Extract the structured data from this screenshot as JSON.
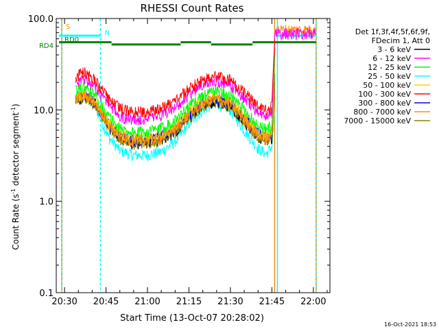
{
  "chart_data": {
    "type": "line",
    "title": "RHESSI Count Rates",
    "xlabel": "Start Time (13-Oct-07 20:28:02)",
    "ylabel_main": "Count Rate (s",
    "ylabel_sup1": "-1",
    "ylabel_mid": " detector segment",
    "ylabel_sup2": "-1",
    "ylabel_end": ")",
    "xlim": [
      "20:27",
      "22:06"
    ],
    "ylim": [
      0.1,
      100.0
    ],
    "yscale": "log",
    "x_ticks": [
      {
        "t": "20:30",
        "label": "20:30"
      },
      {
        "t": "20:45",
        "label": "20:45"
      },
      {
        "t": "21:00",
        "label": "21:00"
      },
      {
        "t": "21:15",
        "label": "21:15"
      },
      {
        "t": "21:30",
        "label": "21:30"
      },
      {
        "t": "21:45",
        "label": "21:45"
      },
      {
        "t": "22:00",
        "label": "22:00"
      }
    ],
    "y_ticks": [
      {
        "v": 0.1,
        "label": "0.1"
      },
      {
        "v": 1.0,
        "label": "1.0"
      },
      {
        "v": 10.0,
        "label": "10.0"
      },
      {
        "v": 100.0,
        "label": "100.0"
      }
    ],
    "legend": {
      "position": "right",
      "header": [
        "Det 1f,3f,4f,5f,6f,9f,",
        "FDecim 1, Att 0"
      ],
      "entries": [
        {
          "label": "3 - 6 keV",
          "color": "#000000"
        },
        {
          "label": "6 - 12 keV",
          "color": "#ff00ff"
        },
        {
          "label": "12 - 25 keV",
          "color": "#00ff00"
        },
        {
          "label": "25 - 50 keV",
          "color": "#00ffff"
        },
        {
          "label": "50 - 100 keV",
          "color": "#ffd700"
        },
        {
          "label": "100 - 300 keV",
          "color": "#ff0000"
        },
        {
          "label": "300 - 800 keV",
          "color": "#0000ff"
        },
        {
          "label": "800 - 7000 keV",
          "color": "#ff8c00"
        },
        {
          "label": "7000 - 15000 keV",
          "color": "#8b8000"
        }
      ]
    },
    "series": [
      {
        "color": "#00ffff",
        "points": [
          [
            "20:34",
            14
          ],
          [
            "20:37",
            15
          ],
          [
            "20:41",
            11
          ],
          [
            "20:46",
            5
          ],
          [
            "20:50",
            3.6
          ],
          [
            "20:55",
            3.2
          ],
          [
            "21:00",
            3.2
          ],
          [
            "21:05",
            3.5
          ],
          [
            "21:10",
            4.5
          ],
          [
            "21:15",
            7
          ],
          [
            "21:20",
            10
          ],
          [
            "21:25",
            12
          ],
          [
            "21:30",
            10
          ],
          [
            "21:35",
            6
          ],
          [
            "21:40",
            3.8
          ],
          [
            "21:43",
            3.3
          ],
          [
            "21:45",
            4
          ],
          [
            "21:46",
            9
          ]
        ]
      },
      {
        "color": "#000000",
        "points": [
          [
            "20:34",
            12.5
          ],
          [
            "20:37",
            14
          ],
          [
            "20:41",
            11.5
          ],
          [
            "20:46",
            6.5
          ],
          [
            "20:50",
            4.8
          ],
          [
            "20:55",
            4.3
          ],
          [
            "21:00",
            4.4
          ],
          [
            "21:05",
            4.7
          ],
          [
            "21:10",
            5.8
          ],
          [
            "21:15",
            8.2
          ],
          [
            "21:20",
            11
          ],
          [
            "21:25",
            12.5
          ],
          [
            "21:30",
            11
          ],
          [
            "21:35",
            7.5
          ],
          [
            "21:40",
            5
          ],
          [
            "21:43",
            4.6
          ],
          [
            "21:45",
            5
          ],
          [
            "21:46",
            20
          ]
        ]
      },
      {
        "color": "#8b8000",
        "points": [
          [
            "20:34",
            12.5
          ],
          [
            "20:37",
            14
          ],
          [
            "20:41",
            11.5
          ],
          [
            "20:46",
            6.5
          ],
          [
            "20:50",
            4.8
          ],
          [
            "20:55",
            4.3
          ],
          [
            "21:00",
            4.4
          ],
          [
            "21:05",
            4.7
          ],
          [
            "21:10",
            5.8
          ],
          [
            "21:15",
            8.2
          ],
          [
            "21:20",
            11
          ],
          [
            "21:25",
            12.5
          ],
          [
            "21:30",
            11
          ],
          [
            "21:35",
            7.5
          ],
          [
            "21:40",
            5
          ],
          [
            "21:43",
            4.6
          ],
          [
            "21:45",
            5
          ],
          [
            "21:46",
            20
          ]
        ]
      },
      {
        "color": "#0000ff",
        "points": [
          [
            "20:34",
            13
          ],
          [
            "20:37",
            14.5
          ],
          [
            "20:41",
            12
          ],
          [
            "20:46",
            7
          ],
          [
            "20:50",
            5.2
          ],
          [
            "20:55",
            4.7
          ],
          [
            "21:00",
            4.8
          ],
          [
            "21:05",
            5.2
          ],
          [
            "21:10",
            6.4
          ],
          [
            "21:15",
            9
          ],
          [
            "21:20",
            12
          ],
          [
            "21:25",
            13.5
          ],
          [
            "21:30",
            12
          ],
          [
            "21:35",
            8.2
          ],
          [
            "21:40",
            5.5
          ],
          [
            "21:43",
            5
          ],
          [
            "21:45",
            5.5
          ],
          [
            "21:46",
            25
          ]
        ]
      },
      {
        "color": "#ffd700",
        "points": [
          [
            "20:34",
            13.5
          ],
          [
            "20:37",
            15
          ],
          [
            "20:41",
            12.5
          ],
          [
            "20:46",
            7.2
          ],
          [
            "20:50",
            5.4
          ],
          [
            "20:55",
            4.9
          ],
          [
            "21:00",
            5
          ],
          [
            "21:05",
            5.4
          ],
          [
            "21:10",
            6.6
          ],
          [
            "21:15",
            9.4
          ],
          [
            "21:20",
            12.5
          ],
          [
            "21:25",
            14
          ],
          [
            "21:30",
            12.5
          ],
          [
            "21:35",
            8.5
          ],
          [
            "21:40",
            5.7
          ],
          [
            "21:43",
            5.2
          ],
          [
            "21:45",
            5.7
          ],
          [
            "21:46",
            30
          ]
        ]
      },
      {
        "color": "#ff8c00",
        "points": [
          [
            "20:34",
            13
          ],
          [
            "20:37",
            14.5
          ],
          [
            "20:41",
            12
          ],
          [
            "20:46",
            6.8
          ],
          [
            "20:50",
            5.1
          ],
          [
            "20:55",
            4.6
          ],
          [
            "21:00",
            4.7
          ],
          [
            "21:05",
            5
          ],
          [
            "21:10",
            6.2
          ],
          [
            "21:15",
            8.8
          ],
          [
            "21:20",
            11.8
          ],
          [
            "21:25",
            13.2
          ],
          [
            "21:30",
            11.8
          ],
          [
            "21:35",
            8
          ],
          [
            "21:40",
            5.4
          ],
          [
            "21:43",
            4.9
          ],
          [
            "21:45",
            5.3
          ],
          [
            "21:46",
            60
          ],
          [
            "21:46",
            75
          ],
          [
            "22:01",
            75
          ]
        ]
      },
      {
        "color": "#00ff00",
        "points": [
          [
            "20:34",
            16
          ],
          [
            "20:37",
            18
          ],
          [
            "20:41",
            14.5
          ],
          [
            "20:46",
            8.5
          ],
          [
            "20:50",
            6.3
          ],
          [
            "20:55",
            5.7
          ],
          [
            "21:00",
            5.8
          ],
          [
            "21:05",
            6.3
          ],
          [
            "21:10",
            7.8
          ],
          [
            "21:15",
            11
          ],
          [
            "21:20",
            14.5
          ],
          [
            "21:25",
            16.5
          ],
          [
            "21:30",
            14.5
          ],
          [
            "21:35",
            10
          ],
          [
            "21:40",
            6.8
          ],
          [
            "21:43",
            6.2
          ],
          [
            "21:45",
            6.8
          ],
          [
            "21:46",
            40
          ]
        ]
      },
      {
        "color": "#ff00ff",
        "points": [
          [
            "20:34",
            20
          ],
          [
            "20:37",
            22
          ],
          [
            "20:41",
            18
          ],
          [
            "20:46",
            11.5
          ],
          [
            "20:50",
            8.5
          ],
          [
            "20:55",
            7.8
          ],
          [
            "21:00",
            8
          ],
          [
            "21:05",
            8.7
          ],
          [
            "21:10",
            10.5
          ],
          [
            "21:15",
            14.5
          ],
          [
            "21:20",
            19
          ],
          [
            "21:25",
            21
          ],
          [
            "21:30",
            19
          ],
          [
            "21:35",
            13.5
          ],
          [
            "21:40",
            9.5
          ],
          [
            "21:43",
            8.8
          ],
          [
            "21:45",
            9.5
          ],
          [
            "21:46",
            55
          ],
          [
            "21:46",
            68
          ],
          [
            "22:01",
            68
          ]
        ]
      },
      {
        "color": "#ff0000",
        "points": [
          [
            "20:34",
            23
          ],
          [
            "20:37",
            26
          ],
          [
            "20:41",
            21
          ],
          [
            "20:46",
            13
          ],
          [
            "20:50",
            10.5
          ],
          [
            "20:55",
            9.5
          ],
          [
            "21:00",
            9.6
          ],
          [
            "21:05",
            10.5
          ],
          [
            "21:10",
            12.5
          ],
          [
            "21:15",
            17
          ],
          [
            "21:20",
            21.5
          ],
          [
            "21:25",
            23.5
          ],
          [
            "21:30",
            21.5
          ],
          [
            "21:35",
            15.5
          ],
          [
            "21:40",
            11
          ],
          [
            "21:43",
            10
          ],
          [
            "21:45",
            11
          ],
          [
            "21:46",
            60
          ]
        ]
      }
    ],
    "attenuator_bar": {
      "color": "#00ffff",
      "level": 65,
      "segments": [
        [
          "20:28",
          "20:43"
        ],
        [
          "21:47",
          "22:01"
        ]
      ]
    },
    "rd_bars": [
      {
        "color": "#008000",
        "level": 55,
        "segments": [
          [
            "20:28",
            "20:47"
          ],
          [
            "21:12",
            "21:23"
          ],
          [
            "21:38",
            "22:01"
          ]
        ]
      },
      {
        "color": "#008000",
        "level": 52,
        "segments": [
          [
            "20:47",
            "21:12"
          ],
          [
            "21:23",
            "21:38"
          ]
        ]
      }
    ],
    "vlines": [
      {
        "t": "20:29",
        "color": "#00ffff",
        "dash": false
      },
      {
        "t": "20:29",
        "color": "#ff8c00",
        "dash": true
      },
      {
        "t": "20:43",
        "color": "#00ffff",
        "dash": true
      },
      {
        "t": "21:46",
        "color": "#ff8c00",
        "dash": false
      },
      {
        "t": "21:47",
        "color": "#00ffff",
        "dash": false
      },
      {
        "t": "22:01",
        "color": "#00ffff",
        "dash": false
      },
      {
        "t": "22:01",
        "color": "#ff8c00",
        "dash": true
      }
    ],
    "annotations": {
      "s_marker": {
        "text": "S",
        "color": "#ff8c00"
      },
      "n_marker": {
        "text": "N",
        "color": "#00ffff"
      },
      "rd0_label": {
        "text": "RD0",
        "color": "#008000"
      },
      "rd4_label": {
        "text": "RD4",
        "color": "#008000"
      }
    },
    "footer_timestamp": "16-Oct-2021 18:53"
  }
}
